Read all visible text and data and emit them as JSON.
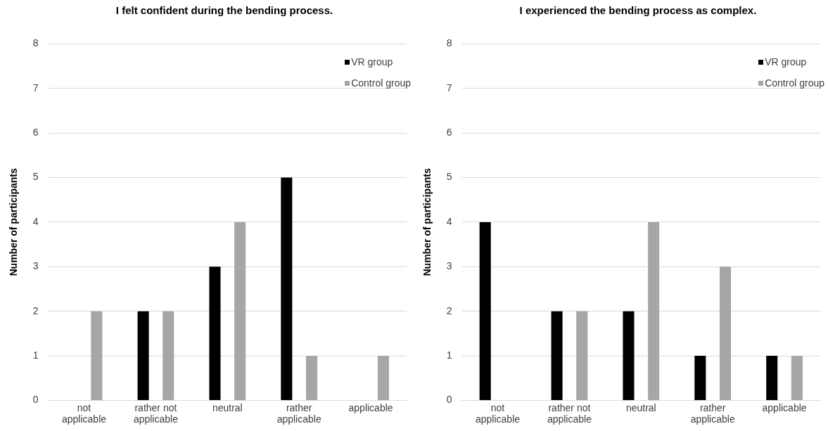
{
  "chart_data": [
    {
      "type": "bar",
      "title": "I felt confident during the bending process.",
      "ylabel": "Number of participants",
      "categories": [
        "not applicable",
        "rather not applicable",
        "neutral",
        "rather applicable",
        "applicable"
      ],
      "series": [
        {
          "name": "VR group",
          "color": "#000000",
          "values": [
            0,
            2,
            3,
            5,
            0
          ]
        },
        {
          "name": "Control group",
          "color": "#a6a6a6",
          "values": [
            2,
            2,
            4,
            1,
            1
          ]
        }
      ],
      "ylim": [
        0,
        8
      ],
      "yticks": [
        0,
        1,
        2,
        3,
        4,
        5,
        6,
        7,
        8
      ],
      "grid": "y",
      "legend": "top right"
    },
    {
      "type": "bar",
      "title": "I experienced the bending process as complex.",
      "ylabel": "Number of participants",
      "categories": [
        "not applicable",
        "rather not applicable",
        "neutral",
        "rather applicable",
        "applicable"
      ],
      "series": [
        {
          "name": "VR group",
          "color": "#000000",
          "values": [
            4,
            2,
            2,
            1,
            1
          ]
        },
        {
          "name": "Control group",
          "color": "#a6a6a6",
          "values": [
            0,
            2,
            4,
            3,
            1
          ]
        }
      ],
      "ylim": [
        0,
        8
      ],
      "yticks": [
        0,
        1,
        2,
        3,
        4,
        5,
        6,
        7,
        8
      ],
      "grid": "y",
      "legend": "top right"
    }
  ]
}
